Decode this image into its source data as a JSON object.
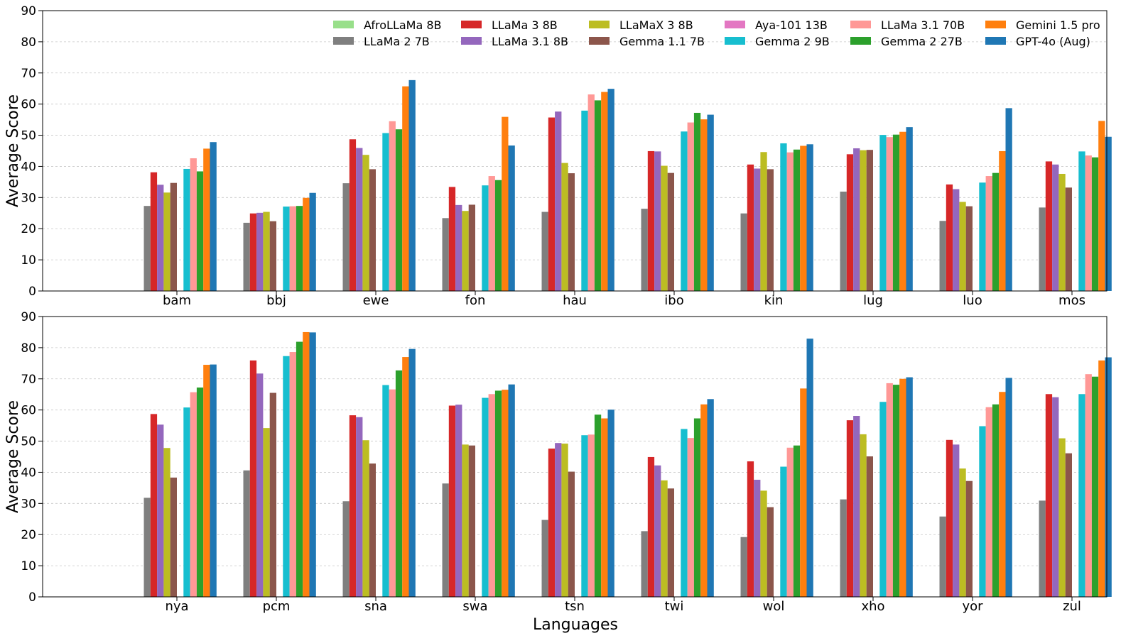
{
  "chart_data": {
    "type": "bar",
    "xlabel": "Languages",
    "ylabel": "Average Score",
    "ylim": [
      0,
      90
    ],
    "yticks": [
      0,
      10,
      20,
      30,
      40,
      50,
      60,
      70,
      80,
      90
    ],
    "grid": "y-dashed",
    "legend_position": "top-right",
    "series": [
      {
        "name": "AfroLLaMa 8B",
        "color": "#98df8a"
      },
      {
        "name": "LLaMa 2 7B",
        "color": "#7f7f7f"
      },
      {
        "name": "LLaMa 3 8B",
        "color": "#d62728"
      },
      {
        "name": "LLaMa 3.1 8B",
        "color": "#9467bd"
      },
      {
        "name": "LLaMaX 3 8B",
        "color": "#bcbd22"
      },
      {
        "name": "Gemma 1.1 7B",
        "color": "#8c564b"
      },
      {
        "name": "Aya-101 13B",
        "color": "#e377c2"
      },
      {
        "name": "Gemma 2 9B",
        "color": "#17becf"
      },
      {
        "name": "LLaMa 3.1 70B",
        "color": "#ff9896"
      },
      {
        "name": "Gemma 2 27B",
        "color": "#2ca02c"
      },
      {
        "name": "Gemini 1.5 pro",
        "color": "#ff7f0e"
      },
      {
        "name": "GPT-4o (Aug)",
        "color": "#1f77b4"
      }
    ],
    "panels": [
      {
        "categories": [
          "bam",
          "bbj",
          "ewe",
          "fon",
          "hau",
          "ibo",
          "kin",
          "lug",
          "luo",
          "mos"
        ],
        "values": [
          [
            0,
            27.3,
            38.1,
            34.1,
            31.6,
            34.7,
            0,
            39.2,
            42.6,
            38.4,
            45.7,
            47.8
          ],
          [
            0,
            21.9,
            24.9,
            25.1,
            25.4,
            22.4,
            0,
            27.1,
            27.2,
            27.3,
            29.9,
            31.5
          ],
          [
            0,
            34.6,
            48.7,
            45.9,
            43.7,
            39.1,
            0,
            50.7,
            54.5,
            51.9,
            65.7,
            67.7
          ],
          [
            0,
            23.4,
            33.4,
            27.6,
            25.7,
            27.7,
            0,
            33.9,
            36.9,
            35.6,
            55.9,
            46.7
          ],
          [
            0,
            25.4,
            55.7,
            57.6,
            41.1,
            37.8,
            0,
            57.9,
            63.1,
            61.2,
            63.9,
            64.9
          ],
          [
            0,
            26.4,
            44.9,
            44.8,
            40.2,
            37.9,
            0,
            51.2,
            54.1,
            57.2,
            55.1,
            56.6
          ],
          [
            0,
            24.9,
            40.6,
            39.3,
            44.6,
            39.1,
            0,
            47.4,
            44.5,
            45.4,
            46.6,
            47.1
          ],
          [
            0,
            31.9,
            43.9,
            45.8,
            45.2,
            45.3,
            0,
            50.1,
            49.4,
            50.2,
            51.1,
            52.6
          ],
          [
            0,
            22.5,
            34.2,
            32.7,
            28.6,
            27.2,
            0,
            34.8,
            36.9,
            37.9,
            44.9,
            58.7
          ],
          [
            0,
            26.8,
            41.6,
            40.6,
            37.6,
            33.2,
            0,
            44.8,
            43.5,
            42.9,
            54.6,
            49.5
          ]
        ]
      },
      {
        "categories": [
          "nya",
          "pcm",
          "sna",
          "swa",
          "tsn",
          "twi",
          "wol",
          "xho",
          "yor",
          "zul"
        ],
        "values": [
          [
            0,
            31.8,
            58.7,
            55.3,
            47.8,
            38.3,
            0,
            60.8,
            65.7,
            67.2,
            74.5,
            74.6
          ],
          [
            0,
            40.6,
            75.9,
            71.7,
            54.2,
            65.5,
            0,
            77.3,
            78.6,
            81.9,
            85.0,
            84.9
          ],
          [
            0,
            30.7,
            58.3,
            57.7,
            50.3,
            42.8,
            0,
            68.0,
            66.6,
            72.7,
            77.0,
            79.6
          ],
          [
            0,
            36.4,
            61.4,
            61.7,
            48.9,
            48.6,
            0,
            63.9,
            65.1,
            66.2,
            66.5,
            68.2
          ],
          [
            0,
            24.7,
            47.6,
            49.4,
            49.2,
            40.2,
            0,
            51.9,
            52.1,
            58.5,
            57.3,
            60.1
          ],
          [
            0,
            21.1,
            44.9,
            42.2,
            37.4,
            34.8,
            0,
            53.9,
            51.0,
            57.3,
            61.8,
            63.5
          ],
          [
            0,
            19.2,
            43.5,
            37.6,
            34.1,
            28.8,
            0,
            41.8,
            47.9,
            48.6,
            66.9,
            82.9
          ],
          [
            0,
            31.3,
            56.7,
            58.1,
            52.2,
            45.1,
            0,
            62.6,
            68.6,
            68.1,
            70.0,
            70.5
          ],
          [
            0,
            25.8,
            50.4,
            48.9,
            41.2,
            37.2,
            0,
            54.8,
            60.9,
            61.8,
            65.8,
            70.3
          ],
          [
            0,
            30.9,
            65.1,
            64.1,
            50.9,
            46.1,
            0,
            65.1,
            71.5,
            70.7,
            75.9,
            76.9
          ]
        ]
      }
    ]
  }
}
